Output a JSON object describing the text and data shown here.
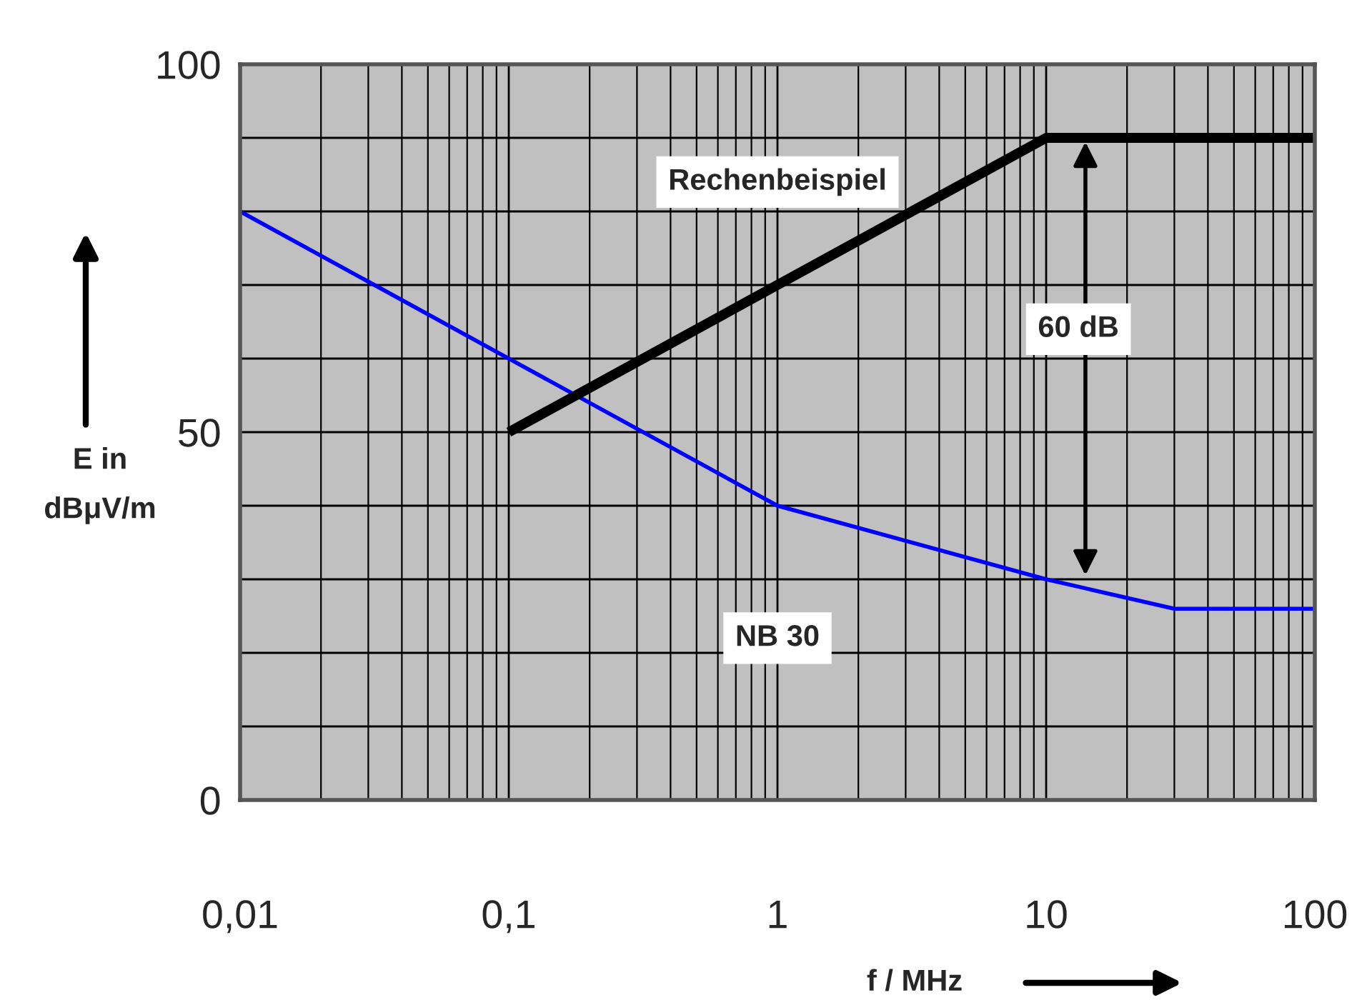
{
  "chart_data": {
    "type": "line",
    "ylabel": "E in\ndBμV/m",
    "xlabel": "f / MHz",
    "log": "x",
    "xlim": [
      0.01,
      100
    ],
    "ylim": [
      0,
      100
    ],
    "xticks": [
      {
        "value": 0.01,
        "label": "0,01"
      },
      {
        "value": 0.1,
        "label": "0,1"
      },
      1,
      10,
      100
    ],
    "yticks": [
      0,
      {
        "value": 10,
        "label": null
      },
      {
        "value": 20,
        "label": null
      },
      {
        "value": 30,
        "label": null
      },
      {
        "value": 40,
        "label": null
      },
      50,
      {
        "value": 60,
        "label": null
      },
      {
        "value": 70,
        "label": null
      },
      {
        "value": 80,
        "label": null
      },
      {
        "value": 90,
        "label": null
      },
      100
    ],
    "grid": true,
    "legend": false,
    "line_style": "solid",
    "marker": "none",
    "series": [
      {
        "color": "#0000ff",
        "x": [
          0.01,
          1,
          10,
          30,
          100
        ],
        "values": [
          80,
          40,
          30,
          26,
          26
        ]
      },
      {
        "color": "#000000",
        "x": [
          0.1,
          10,
          100
        ],
        "values": [
          50,
          90,
          90
        ]
      }
    ],
    "annotations": [
      "Rechenbeispiel",
      "NB 30",
      "60 dB"
    ]
  }
}
